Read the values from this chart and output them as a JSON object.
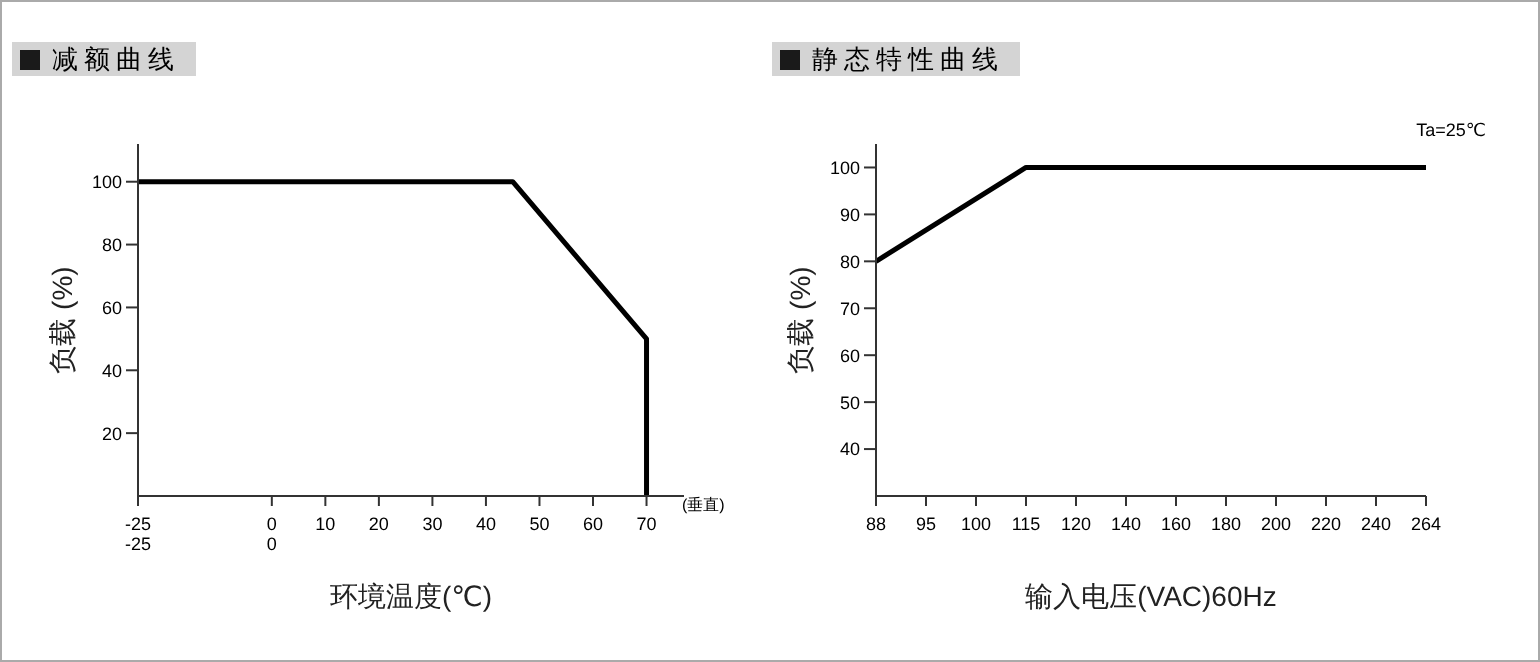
{
  "chart_data": [
    {
      "type": "line",
      "title": "减额曲线",
      "xlabel": "环境温度(℃)",
      "ylabel": "负载 (%)",
      "x": [
        -25,
        45,
        70,
        70
      ],
      "series": [
        {
          "color": "#000000",
          "values": [
            100,
            100,
            50,
            0
          ]
        }
      ],
      "xlim": [
        -25,
        77
      ],
      "xticks": [
        {
          "value": -25,
          "label": "-25\n-25"
        },
        {
          "value": 0,
          "label": "0\n0"
        },
        10,
        20,
        30,
        40,
        50,
        60,
        70
      ],
      "ylim": [
        0,
        112
      ],
      "yticks": [
        20,
        40,
        60,
        80,
        100
      ],
      "annotations": [
        "(垂直)"
      ],
      "grid": false,
      "legend": false,
      "marker": "none",
      "line_style": "solid"
    },
    {
      "type": "line",
      "title": "静态特性曲线",
      "xlabel": "输入电压(VAC)60Hz",
      "ylabel": "负载 (%)",
      "categories": [
        "88",
        "95",
        "100",
        "115",
        "120",
        "140",
        "160",
        "180",
        "200",
        "220",
        "240",
        "264"
      ],
      "series": [
        {
          "color": "#000000",
          "values": [
            80,
            null,
            null,
            100,
            100,
            100,
            100,
            100,
            100,
            100,
            100,
            100
          ]
        }
      ],
      "ylim": [
        30,
        105
      ],
      "yticks": [
        40,
        50,
        60,
        70,
        80,
        90,
        100
      ],
      "annotations": [
        "Ta=25℃"
      ],
      "grid": false,
      "legend": false,
      "marker": "none",
      "line_style": "solid"
    }
  ]
}
